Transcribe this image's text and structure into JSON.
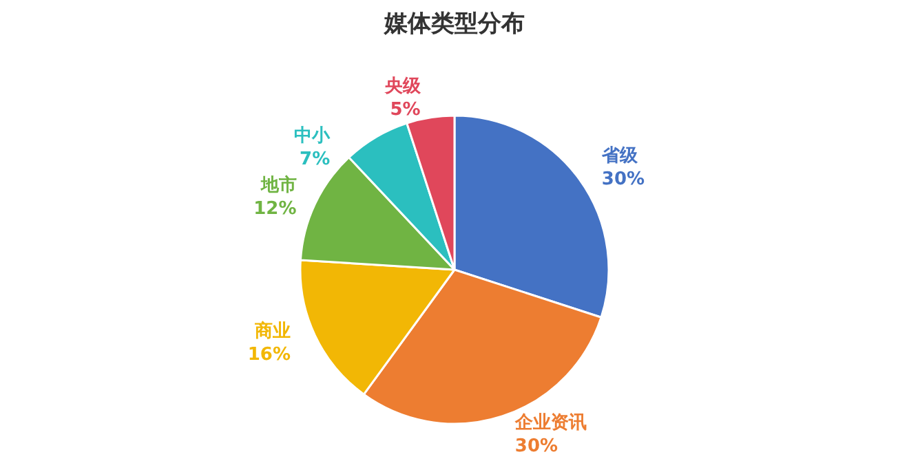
{
  "chart_data": {
    "type": "pie",
    "title": "媒体类型分布",
    "categories": [
      "省级",
      "企业资讯",
      "商业",
      "地市",
      "中小",
      "央级"
    ],
    "values": [
      30,
      30,
      16,
      12,
      7,
      5
    ],
    "colors": [
      "#4472c4",
      "#ed7d31",
      "#f2b705",
      "#70b443",
      "#2bbfbf",
      "#e0475b"
    ],
    "value_labels": [
      "30%",
      "30%",
      "16%",
      "12%",
      "7%",
      "5%"
    ],
    "legend": false
  }
}
